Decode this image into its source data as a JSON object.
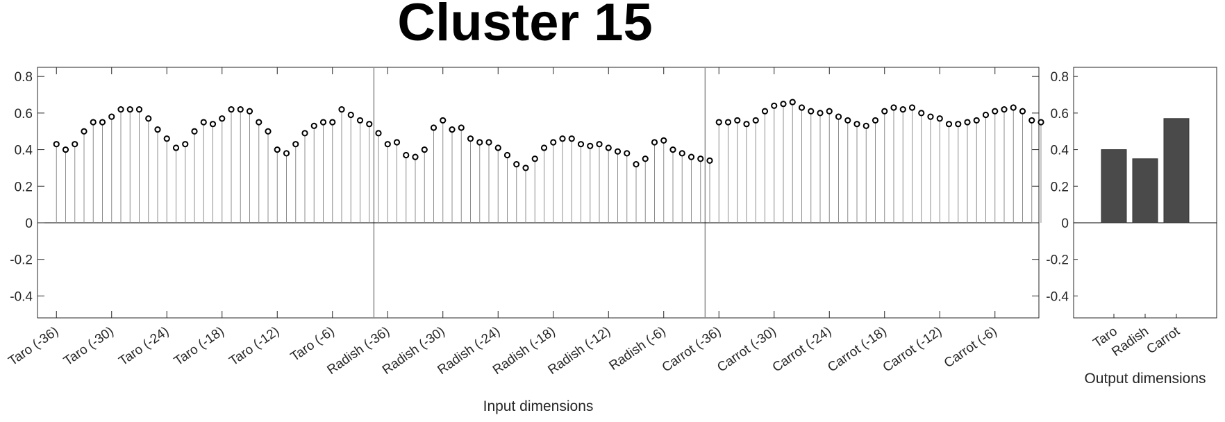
{
  "title": "Cluster 15",
  "chart_data": [
    {
      "type": "stem",
      "xlabel": "Input dimensions",
      "ylim": [
        -0.52,
        0.85
      ],
      "yticks": [
        -0.4,
        -0.2,
        0,
        0.2,
        0.4,
        0.6,
        0.8
      ],
      "ytick_labels": [
        "-0.4",
        "-0.2",
        "0",
        "0.2",
        "0.4",
        "0.6",
        "0.8"
      ],
      "xtick_labels": [
        "Taro (-36)",
        "Taro (-30)",
        "Taro (-24)",
        "Taro (-18)",
        "Taro (-12)",
        "Taro (-6)",
        "Radish (-36)",
        "Radish (-30)",
        "Radish (-24)",
        "Radish (-18)",
        "Radish (-12)",
        "Radish (-6)",
        "Carrot (-36)",
        "Carrot (-30)",
        "Carrot (-24)",
        "Carrot (-18)",
        "Carrot (-12)",
        "Carrot (-6)"
      ],
      "group_separators": [
        36.5,
        72.5
      ],
      "values": [
        0.43,
        0.4,
        0.43,
        0.5,
        0.55,
        0.55,
        0.58,
        0.62,
        0.62,
        0.62,
        0.57,
        0.51,
        0.46,
        0.41,
        0.43,
        0.5,
        0.55,
        0.54,
        0.57,
        0.62,
        0.62,
        0.61,
        0.55,
        0.5,
        0.4,
        0.38,
        0.43,
        0.49,
        0.53,
        0.55,
        0.55,
        0.62,
        0.59,
        0.56,
        0.54,
        0.49,
        0.43,
        0.44,
        0.37,
        0.36,
        0.4,
        0.52,
        0.56,
        0.51,
        0.52,
        0.46,
        0.44,
        0.44,
        0.41,
        0.37,
        0.32,
        0.3,
        0.35,
        0.41,
        0.44,
        0.46,
        0.46,
        0.43,
        0.42,
        0.43,
        0.41,
        0.39,
        0.38,
        0.32,
        0.35,
        0.44,
        0.45,
        0.4,
        0.38,
        0.36,
        0.35,
        0.34,
        0.55,
        0.55,
        0.56,
        0.54,
        0.56,
        0.61,
        0.64,
        0.65,
        0.66,
        0.63,
        0.61,
        0.6,
        0.61,
        0.58,
        0.56,
        0.54,
        0.53,
        0.56,
        0.61,
        0.63,
        0.62,
        0.63,
        0.6,
        0.58,
        0.57,
        0.54,
        0.54,
        0.55,
        0.56,
        0.59,
        0.61,
        0.62,
        0.63,
        0.61,
        0.56,
        0.55
      ]
    },
    {
      "type": "bar",
      "xlabel": "Output dimensions",
      "categories": [
        "Taro",
        "Radish",
        "Carrot"
      ],
      "values": [
        0.4,
        0.35,
        0.57
      ],
      "ylim": [
        -0.52,
        0.85
      ],
      "yticks": [
        -0.4,
        -0.2,
        0,
        0.2,
        0.4,
        0.6,
        0.8
      ],
      "ytick_labels": [
        "-0.4",
        "-0.2",
        "0",
        "0.2",
        "0.4",
        "0.6",
        "0.8"
      ],
      "bar_color": "#4a4a4a"
    }
  ]
}
